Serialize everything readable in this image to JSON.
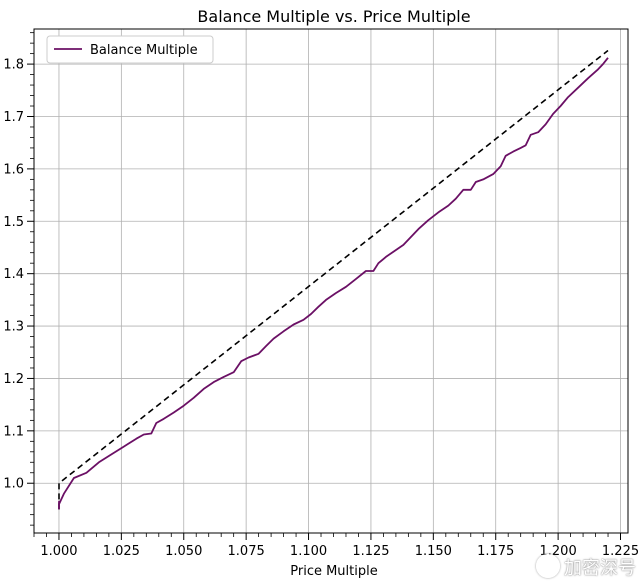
{
  "chart_data": {
    "type": "line",
    "title": "Balance Multiple vs. Price Multiple",
    "xlabel": "Price Multiple",
    "ylabel": "",
    "xlim": [
      0.99,
      1.228
    ],
    "ylim": [
      0.905,
      1.867
    ],
    "xticks": [
      "1.000",
      "1.025",
      "1.050",
      "1.075",
      "1.100",
      "1.125",
      "1.150",
      "1.175",
      "1.200",
      "1.225"
    ],
    "xtick_values": [
      1.0,
      1.025,
      1.05,
      1.075,
      1.1,
      1.125,
      1.15,
      1.175,
      1.2,
      1.225
    ],
    "yticks": [
      "1.0",
      "1.1",
      "1.2",
      "1.3",
      "1.4",
      "1.5",
      "1.6",
      "1.7",
      "1.8"
    ],
    "ytick_values": [
      1.0,
      1.1,
      1.2,
      1.3,
      1.4,
      1.5,
      1.6,
      1.7,
      1.8
    ],
    "grid": true,
    "legend_position": "top-left",
    "series": [
      {
        "name": "Balance Multiple",
        "color": "#6b1065",
        "style": "solid",
        "x": [
          1.0,
          1.0,
          1.0,
          1.002,
          1.006,
          1.011,
          1.016,
          1.021,
          1.026,
          1.031,
          1.034,
          1.037,
          1.039,
          1.042,
          1.046,
          1.05,
          1.054,
          1.058,
          1.062,
          1.066,
          1.07,
          1.073,
          1.076,
          1.08,
          1.083,
          1.086,
          1.09,
          1.094,
          1.098,
          1.101,
          1.104,
          1.107,
          1.111,
          1.115,
          1.119,
          1.123,
          1.126,
          1.128,
          1.131,
          1.134,
          1.138,
          1.141,
          1.144,
          1.148,
          1.152,
          1.156,
          1.159,
          1.162,
          1.165,
          1.167,
          1.17,
          1.174,
          1.177,
          1.179,
          1.182,
          1.185,
          1.187,
          1.189,
          1.192,
          1.195,
          1.198,
          1.201,
          1.204,
          1.208,
          1.212,
          1.216,
          1.218,
          1.22
        ],
        "y": [
          0.95,
          0.965,
          0.96,
          0.98,
          1.01,
          1.02,
          1.04,
          1.055,
          1.07,
          1.085,
          1.093,
          1.095,
          1.115,
          1.123,
          1.135,
          1.148,
          1.163,
          1.18,
          1.193,
          1.203,
          1.212,
          1.233,
          1.24,
          1.247,
          1.262,
          1.276,
          1.29,
          1.303,
          1.312,
          1.323,
          1.337,
          1.35,
          1.363,
          1.375,
          1.39,
          1.405,
          1.405,
          1.42,
          1.432,
          1.442,
          1.455,
          1.47,
          1.485,
          1.502,
          1.517,
          1.53,
          1.543,
          1.56,
          1.56,
          1.575,
          1.58,
          1.59,
          1.605,
          1.625,
          1.633,
          1.64,
          1.645,
          1.665,
          1.67,
          1.685,
          1.705,
          1.72,
          1.737,
          1.755,
          1.773,
          1.79,
          1.8,
          1.812
        ]
      },
      {
        "color": "#000000",
        "style": "dashed",
        "x": [
          1.0,
          1.0,
          1.22
        ],
        "y": [
          0.95,
          1.0,
          1.826
        ]
      }
    ]
  },
  "watermark": {
    "text": "加密深号"
  }
}
